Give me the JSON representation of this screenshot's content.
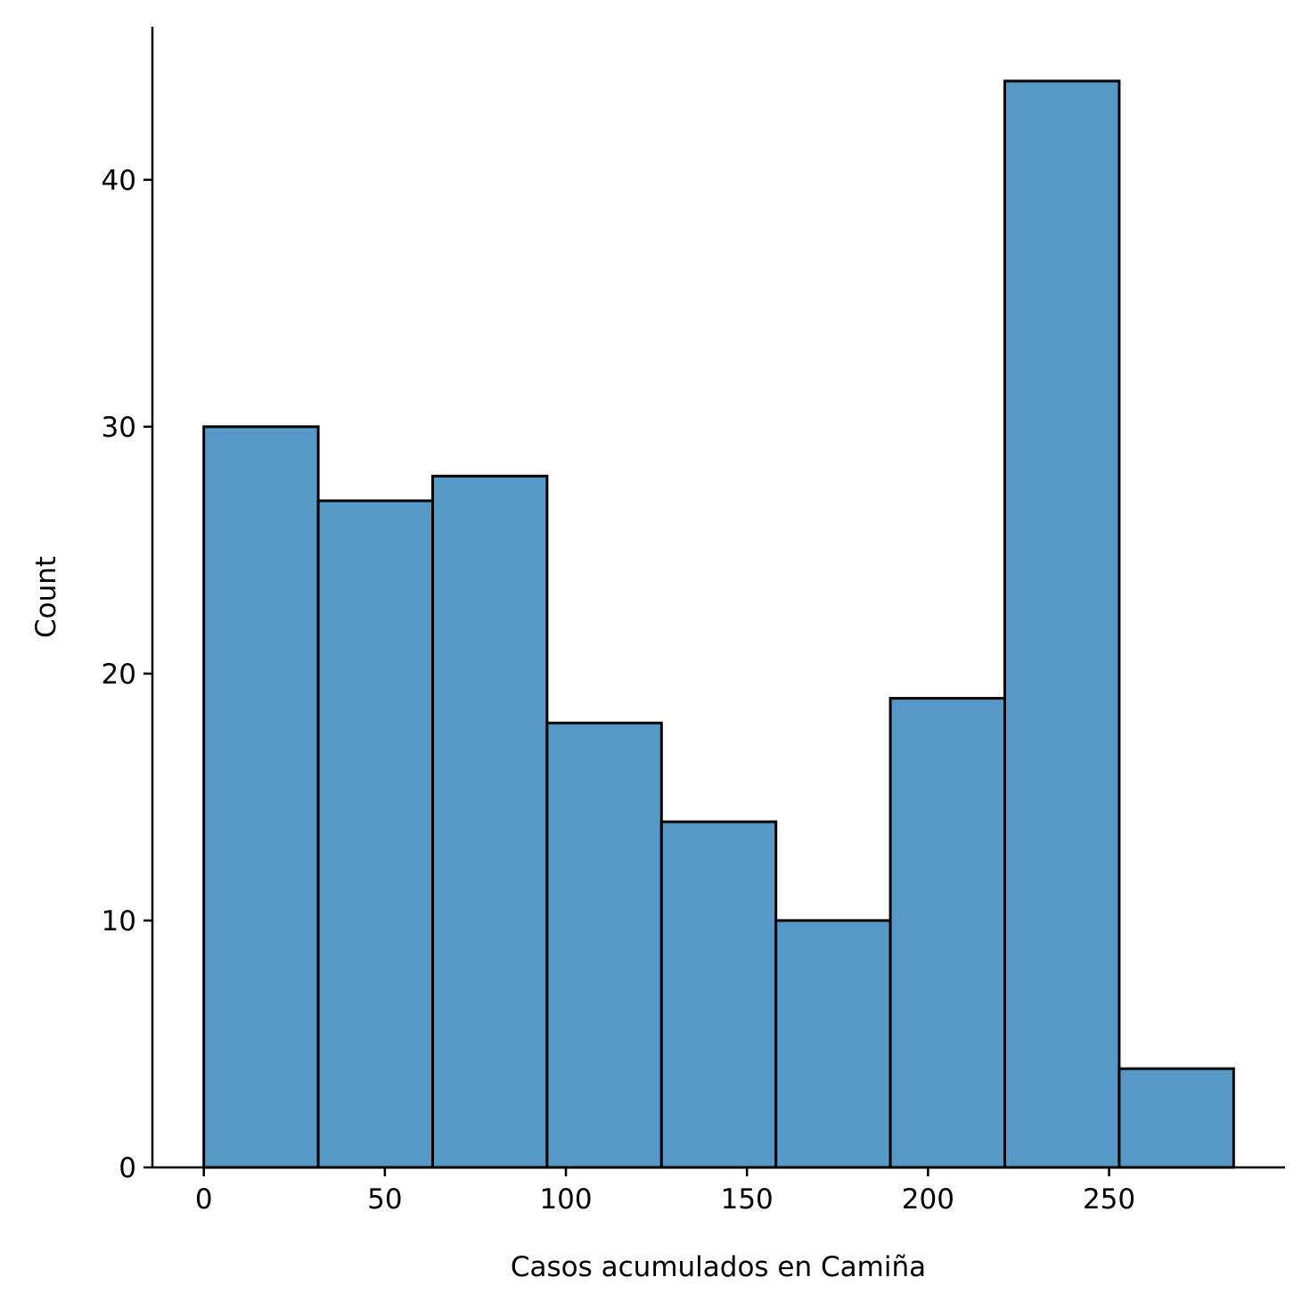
{
  "chart_data": {
    "type": "bar",
    "subtype": "histogram",
    "bin_edges": [
      0,
      31.6,
      63.2,
      94.8,
      126.4,
      158.0,
      189.6,
      221.2,
      252.8,
      284.4
    ],
    "values": [
      30,
      27,
      28,
      18,
      14,
      10,
      19,
      44,
      4
    ],
    "xlabel": "Casos acumulados en Camiña",
    "ylabel": "Count",
    "xlim": [
      -14.2,
      298.6
    ],
    "ylim": [
      0,
      46.2
    ],
    "xticks": [
      "0",
      "50",
      "100",
      "150",
      "200",
      "250"
    ],
    "yticks": [
      "0",
      "10",
      "20",
      "30",
      "40"
    ],
    "grid": false,
    "legend": "none",
    "bar_color": "#5799c6",
    "edge_color": "#000000"
  }
}
